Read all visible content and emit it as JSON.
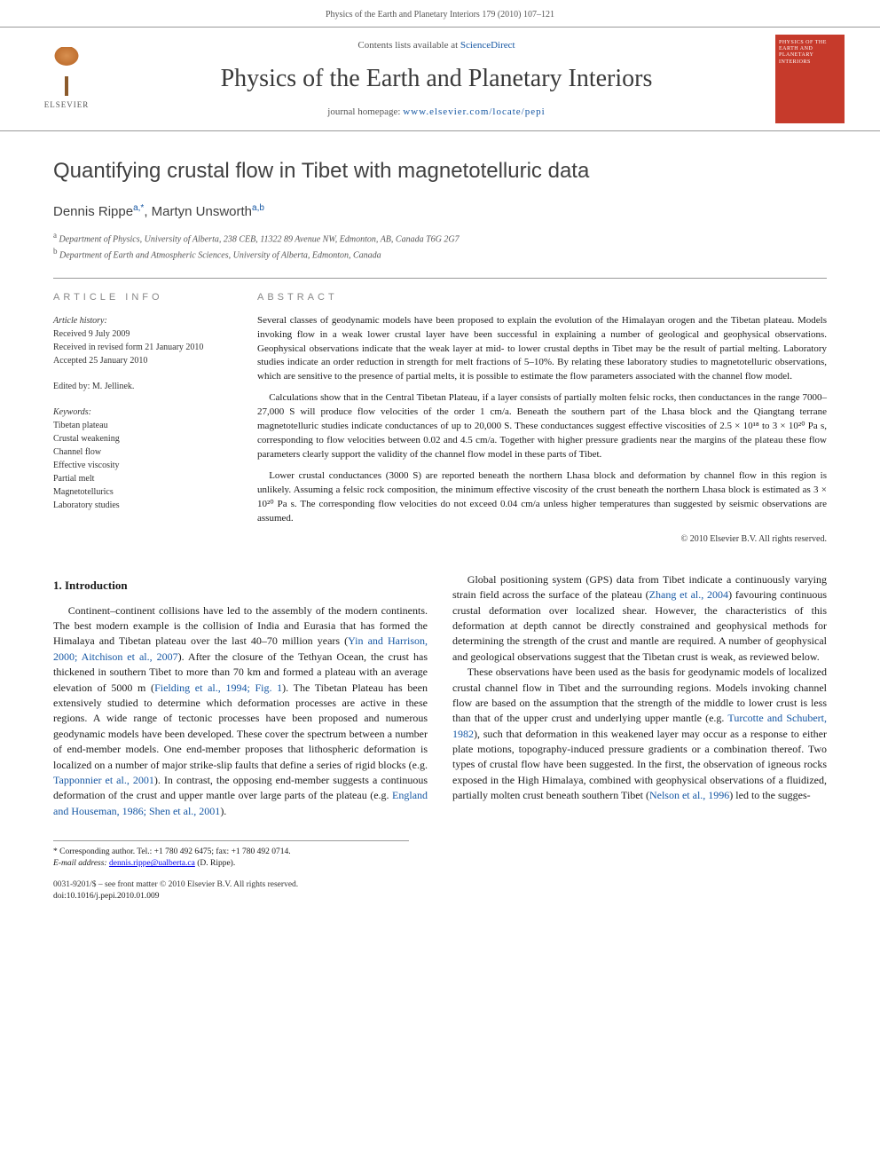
{
  "header": {
    "running_head": "Physics of the Earth and Planetary Interiors 179 (2010) 107–121"
  },
  "masthead": {
    "publisher_name": "ELSEVIER",
    "contents_prefix": "Contents lists available at ",
    "contents_link": "ScienceDirect",
    "journal_title": "Physics of the Earth and Planetary Interiors",
    "homepage_prefix": "journal homepage: ",
    "homepage_url": "www.elsevier.com/locate/pepi",
    "cover_title": "PHYSICS OF THE EARTH AND PLANETARY INTERIORS"
  },
  "article": {
    "title": "Quantifying crustal flow in Tibet with magnetotelluric data",
    "authors_html": "Dennis Rippe",
    "author1_affil": "a,",
    "author1_corr": "*",
    "author_sep": ", ",
    "author2": "Martyn Unsworth",
    "author2_affil": "a,b",
    "affiliations": {
      "a": "Department of Physics, University of Alberta, 238 CEB, 11322 89 Avenue NW, Edmonton, AB, Canada T6G 2G7",
      "b": "Department of Earth and Atmospheric Sciences, University of Alberta, Edmonton, Canada"
    }
  },
  "info": {
    "heading": "ARTICLE INFO",
    "history_label": "Article history:",
    "received": "Received 9 July 2009",
    "revised": "Received in revised form 21 January 2010",
    "accepted": "Accepted 25 January 2010",
    "edited_by": "Edited by: M. Jellinek.",
    "keywords_label": "Keywords:",
    "keywords": [
      "Tibetan plateau",
      "Crustal weakening",
      "Channel flow",
      "Effective viscosity",
      "Partial melt",
      "Magnetotellurics",
      "Laboratory studies"
    ]
  },
  "abstract": {
    "heading": "ABSTRACT",
    "p1": "Several classes of geodynamic models have been proposed to explain the evolution of the Himalayan orogen and the Tibetan plateau. Models invoking flow in a weak lower crustal layer have been successful in explaining a number of geological and geophysical observations. Geophysical observations indicate that the weak layer at mid- to lower crustal depths in Tibet may be the result of partial melting. Laboratory studies indicate an order reduction in strength for melt fractions of 5–10%. By relating these laboratory studies to magnetotelluric observations, which are sensitive to the presence of partial melts, it is possible to estimate the flow parameters associated with the channel flow model.",
    "p2": "Calculations show that in the Central Tibetan Plateau, if a layer consists of partially molten felsic rocks, then conductances in the range 7000–27,000 S will produce flow velocities of the order 1 cm/a. Beneath the southern part of the Lhasa block and the Qiangtang terrane magnetotelluric studies indicate conductances of up to 20,000 S. These conductances suggest effective viscosities of 2.5 × 10¹⁸ to 3 × 10²⁰ Pa s, corresponding to flow velocities between 0.02 and 4.5 cm/a. Together with higher pressure gradients near the margins of the plateau these flow parameters clearly support the validity of the channel flow model in these parts of Tibet.",
    "p3": "Lower crustal conductances (3000 S) are reported beneath the northern Lhasa block and deformation by channel flow in this region is unlikely. Assuming a felsic rock composition, the minimum effective viscosity of the crust beneath the northern Lhasa block is estimated as 3 × 10²⁰ Pa s. The corresponding flow velocities do not exceed 0.04 cm/a unless higher temperatures than suggested by seismic observations are assumed.",
    "copyright": "© 2010 Elsevier B.V. All rights reserved."
  },
  "body": {
    "section_number": "1.",
    "section_title": "Introduction",
    "col1_p1_a": "Continent–continent collisions have led to the assembly of the modern continents. The best modern example is the collision of India and Eurasia that has formed the Himalaya and Tibetan plateau over the last 40–70 million years (",
    "ref1": "Yin and Harrison, 2000; Aitchison et al., 2007",
    "col1_p1_b": "). After the closure of the Tethyan Ocean, the crust has thickened in southern Tibet to more than 70 km and formed a plateau with an average elevation of 5000 m (",
    "ref2": "Fielding et al., 1994; Fig. 1",
    "col1_p1_c": "). The Tibetan Plateau has been extensively studied to determine which deformation processes are active in these regions. A wide range of tectonic processes have been proposed and numerous geodynamic models have been developed. These cover the spectrum between a number of end-member models. One end-member proposes that lithospheric deformation is localized on a number of major strike-slip faults that define a series of rigid blocks (e.g. ",
    "ref3": "Tapponnier et al., 2001",
    "col1_p1_d": "). In contrast, the opposing end-member suggests a continuous deformation of the crust and upper mantle",
    "col2_p1_a": "over large parts of the plateau (e.g. ",
    "ref4": "England and Houseman, 1986; Shen et al., 2001",
    "col2_p1_b": ").",
    "col2_p2_a": "Global positioning system (GPS) data from Tibet indicate a continuously varying strain field across the surface of the plateau (",
    "ref5": "Zhang et al., 2004",
    "col2_p2_b": ") favouring continuous crustal deformation over localized shear. However, the characteristics of this deformation at depth cannot be directly constrained and geophysical methods for determining the strength of the crust and mantle are required. A number of geophysical and geological observations suggest that the Tibetan crust is weak, as reviewed below.",
    "col2_p3_a": "These observations have been used as the basis for geodynamic models of localized crustal channel flow in Tibet and the surrounding regions. Models invoking channel flow are based on the assumption that the strength of the middle to lower crust is less than that of the upper crust and underlying upper mantle (e.g. ",
    "ref6": "Turcotte and Schubert, 1982",
    "col2_p3_b": "), such that deformation in this weakened layer may occur as a response to either plate motions, topography-induced pressure gradients or a combination thereof. Two types of crustal flow have been suggested. In the first, the observation of igneous rocks exposed in the High Himalaya, combined with geophysical observations of a fluidized, partially molten crust beneath southern Tibet (",
    "ref7": "Nelson et al., 1996",
    "col2_p3_c": ") led to the sugges-"
  },
  "footnotes": {
    "corr_label": "* Corresponding author. Tel.: +1 780 492 6475; fax: +1 780 492 0714.",
    "email_label": "E-mail address:",
    "email": "dennis.rippe@ualberta.ca",
    "email_who": "(D. Rippe).",
    "front_matter": "0031-9201/$ – see front matter © 2010 Elsevier B.V. All rights reserved.",
    "doi": "doi:10.1016/j.pepi.2010.01.009"
  }
}
